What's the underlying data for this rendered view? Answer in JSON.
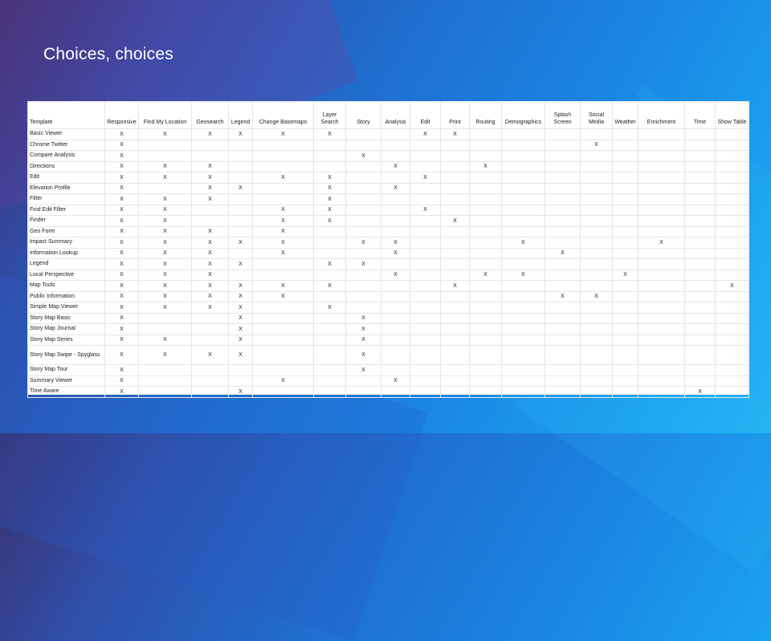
{
  "slide": {
    "title": "Choices, choices"
  },
  "table": {
    "columns": [
      "Template",
      "Responsive",
      "Find My Location",
      "Geosearch",
      "Legend",
      "Change Basemaps",
      "Layer Search",
      "Story",
      "Analysis",
      "Edit",
      "Print",
      "Routing",
      "Demographics",
      "Splash Screen",
      "Social Media",
      "Weather",
      "Enrichment",
      "Time",
      "Show Table"
    ],
    "rows": [
      {
        "name": "Basic Viewer",
        "cells": [
          "X",
          "X",
          "X",
          "X",
          "X",
          "X",
          "",
          "",
          "X",
          "X",
          "",
          "",
          "",
          "",
          "",
          "",
          "",
          ""
        ]
      },
      {
        "name": "Chrome Twitter",
        "cells": [
          "X",
          "",
          "",
          "",
          "",
          "",
          "",
          "",
          "",
          "",
          "",
          "",
          "",
          "X",
          "",
          "",
          "",
          ""
        ]
      },
      {
        "name": "Compare Analysis",
        "cells": [
          "X",
          "",
          "",
          "",
          "",
          "",
          "X",
          "",
          "",
          "",
          "",
          "",
          "",
          "",
          "",
          "",
          "",
          ""
        ]
      },
      {
        "name": "Directions",
        "cells": [
          "X",
          "X",
          "X",
          "",
          "",
          "",
          "",
          "X",
          "",
          "",
          "X",
          "",
          "",
          "",
          "",
          "",
          "",
          ""
        ]
      },
      {
        "name": "Edit",
        "cells": [
          "X",
          "X",
          "X",
          "",
          "X",
          "X",
          "",
          "",
          "X",
          "",
          "",
          "",
          "",
          "",
          "",
          "",
          "",
          ""
        ]
      },
      {
        "name": "Elevation Profile",
        "cells": [
          "X",
          "",
          "X",
          "X",
          "",
          "X",
          "",
          "X",
          "",
          "",
          "",
          "",
          "",
          "",
          "",
          "",
          "",
          ""
        ]
      },
      {
        "name": "Filter",
        "cells": [
          "X",
          "X",
          "X",
          "",
          "",
          "X",
          "",
          "",
          "",
          "",
          "",
          "",
          "",
          "",
          "",
          "",
          "",
          ""
        ]
      },
      {
        "name": "Find Edit Filter",
        "cells": [
          "X",
          "X",
          "",
          "",
          "X",
          "X",
          "",
          "",
          "X",
          "",
          "",
          "",
          "",
          "",
          "",
          "",
          "",
          ""
        ]
      },
      {
        "name": "Finder",
        "cells": [
          "X",
          "X",
          "",
          "",
          "X",
          "X",
          "",
          "",
          "",
          "X",
          "",
          "",
          "",
          "",
          "",
          "",
          "",
          ""
        ]
      },
      {
        "name": "Geo Form",
        "cells": [
          "X",
          "X",
          "X",
          "",
          "X",
          "",
          "",
          "",
          "",
          "",
          "",
          "",
          "",
          "",
          "",
          "",
          "",
          ""
        ]
      },
      {
        "name": "Impact Summary",
        "cells": [
          "X",
          "X",
          "X",
          "X",
          "X",
          "",
          "X",
          "X",
          "",
          "",
          "",
          "X",
          "",
          "",
          "",
          "X",
          "",
          ""
        ]
      },
      {
        "name": "Information Lookup",
        "cells": [
          "X",
          "X",
          "X",
          "",
          "X",
          "",
          "",
          "X",
          "",
          "",
          "",
          "",
          "X",
          "",
          "",
          "",
          "",
          ""
        ]
      },
      {
        "name": "Legend",
        "cells": [
          "X",
          "X",
          "X",
          "X",
          "",
          "X",
          "X",
          "",
          "",
          "",
          "",
          "",
          "",
          "",
          "",
          "",
          "",
          ""
        ]
      },
      {
        "name": "Local Perspective",
        "cells": [
          "X",
          "X",
          "X",
          "",
          "",
          "",
          "",
          "X",
          "",
          "",
          "X",
          "X",
          "",
          "",
          "X",
          "",
          "",
          ""
        ]
      },
      {
        "name": "Map Tools",
        "cells": [
          "X",
          "X",
          "X",
          "X",
          "X",
          "X",
          "",
          "",
          "",
          "X",
          "",
          "",
          "",
          "",
          "",
          "",
          "",
          "X"
        ]
      },
      {
        "name": "Public Information",
        "cells": [
          "X",
          "X",
          "X",
          "X",
          "X",
          "",
          "",
          "",
          "",
          "",
          "",
          "",
          "X",
          "X",
          "",
          "",
          "",
          ""
        ]
      },
      {
        "name": "Simple Map Viewer",
        "cells": [
          "X",
          "X",
          "X",
          "X",
          "",
          "X",
          "",
          "",
          "",
          "",
          "",
          "",
          "",
          "",
          "",
          "",
          "",
          ""
        ]
      },
      {
        "name": "Story Map Basic",
        "cells": [
          "X",
          "",
          "",
          "X",
          "",
          "",
          "X",
          "",
          "",
          "",
          "",
          "",
          "",
          "",
          "",
          "",
          "",
          ""
        ]
      },
      {
        "name": "Story Map Journal",
        "cells": [
          "X",
          "",
          "",
          "X",
          "",
          "",
          "X",
          "",
          "",
          "",
          "",
          "",
          "",
          "",
          "",
          "",
          "",
          ""
        ]
      },
      {
        "name": "Story Map Series",
        "cells": [
          "X",
          "X",
          "",
          "X",
          "",
          "",
          "X",
          "",
          "",
          "",
          "",
          "",
          "",
          "",
          "",
          "",
          "",
          ""
        ]
      },
      {
        "name": "Story Map Swipe - Spyglass",
        "cells": [
          "X",
          "X",
          "X",
          "X",
          "",
          "",
          "X",
          "",
          "",
          "",
          "",
          "",
          "",
          "",
          "",
          "",
          "",
          ""
        ]
      },
      {
        "name": "Story Map Tour",
        "cells": [
          "X",
          "",
          "",
          "",
          "",
          "",
          "X",
          "",
          "",
          "",
          "",
          "",
          "",
          "",
          "",
          "",
          "",
          ""
        ]
      },
      {
        "name": "Summary Viewer",
        "cells": [
          "X",
          "",
          "",
          "",
          "X",
          "",
          "",
          "X",
          "",
          "",
          "",
          "",
          "",
          "",
          "",
          "",
          "",
          ""
        ]
      },
      {
        "name": "Time Aware",
        "cells": [
          "X",
          "",
          "",
          "X",
          "",
          "",
          "",
          "",
          "",
          "",
          "",
          "",
          "",
          "",
          "",
          "",
          "X",
          ""
        ]
      }
    ]
  }
}
